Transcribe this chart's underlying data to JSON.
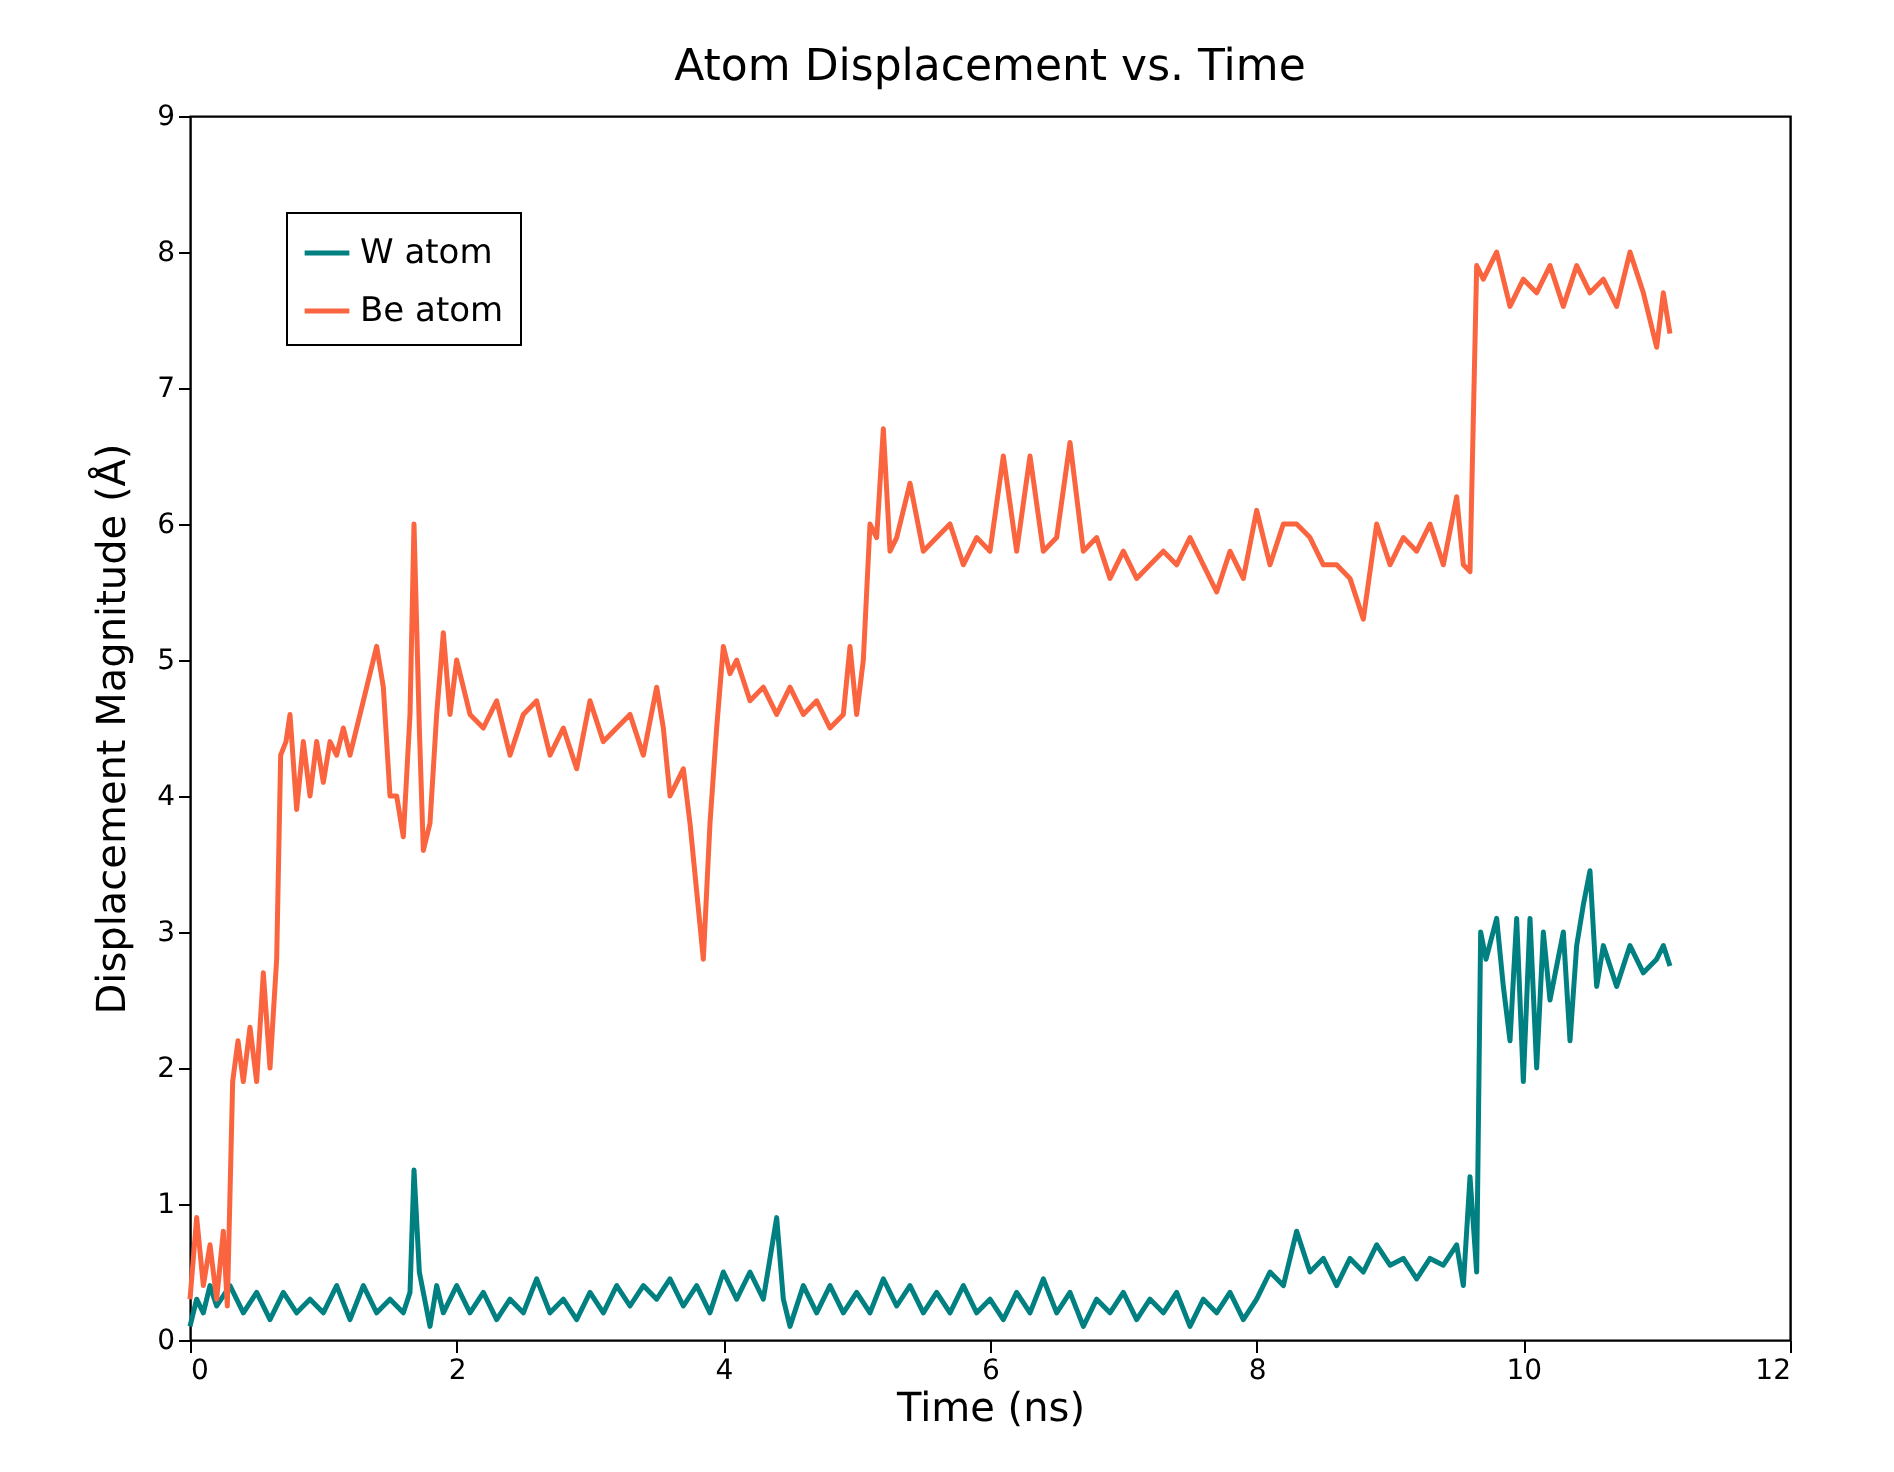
{
  "chart_data": {
    "type": "line",
    "title": "Atom Displacement vs. Time",
    "xlabel": "Time (ns)",
    "ylabel": "Displacement Magnitude (Å)",
    "xlim": [
      0,
      12
    ],
    "xticks": [
      0,
      2,
      4,
      6,
      8,
      10,
      12
    ],
    "ylim": [
      0,
      9
    ],
    "yticks": [
      0,
      1,
      2,
      3,
      4,
      5,
      6,
      7,
      8,
      9
    ],
    "grid": false,
    "legend": "top left",
    "series": [
      {
        "name": "W atom",
        "color": "#008080",
        "x": [
          0,
          0.05,
          0.1,
          0.15,
          0.2,
          0.3,
          0.4,
          0.5,
          0.6,
          0.7,
          0.8,
          0.9,
          1.0,
          1.1,
          1.2,
          1.3,
          1.4,
          1.5,
          1.6,
          1.65,
          1.68,
          1.72,
          1.8,
          1.85,
          1.9,
          2.0,
          2.1,
          2.2,
          2.3,
          2.4,
          2.5,
          2.6,
          2.7,
          2.8,
          2.9,
          3.0,
          3.1,
          3.2,
          3.3,
          3.4,
          3.5,
          3.6,
          3.7,
          3.8,
          3.9,
          4.0,
          4.1,
          4.2,
          4.3,
          4.4,
          4.45,
          4.5,
          4.6,
          4.7,
          4.8,
          4.9,
          5.0,
          5.1,
          5.2,
          5.3,
          5.4,
          5.5,
          5.6,
          5.7,
          5.8,
          5.9,
          6.0,
          6.1,
          6.2,
          6.3,
          6.4,
          6.5,
          6.6,
          6.7,
          6.8,
          6.9,
          7.0,
          7.1,
          7.2,
          7.3,
          7.4,
          7.5,
          7.6,
          7.7,
          7.8,
          7.9,
          8.0,
          8.1,
          8.2,
          8.3,
          8.4,
          8.5,
          8.6,
          8.7,
          8.8,
          8.9,
          9.0,
          9.1,
          9.2,
          9.3,
          9.4,
          9.5,
          9.55,
          9.6,
          9.65,
          9.68,
          9.72,
          9.8,
          9.85,
          9.9,
          9.95,
          10.0,
          10.05,
          10.1,
          10.15,
          10.2,
          10.3,
          10.35,
          10.4,
          10.45,
          10.5,
          10.55,
          10.6,
          10.7,
          10.8,
          10.9,
          11.0,
          11.05,
          11.1
        ],
        "values": [
          0.1,
          0.3,
          0.2,
          0.4,
          0.25,
          0.4,
          0.2,
          0.35,
          0.15,
          0.35,
          0.2,
          0.3,
          0.2,
          0.4,
          0.15,
          0.4,
          0.2,
          0.3,
          0.2,
          0.35,
          1.25,
          0.5,
          0.1,
          0.4,
          0.2,
          0.4,
          0.2,
          0.35,
          0.15,
          0.3,
          0.2,
          0.45,
          0.2,
          0.3,
          0.15,
          0.35,
          0.2,
          0.4,
          0.25,
          0.4,
          0.3,
          0.45,
          0.25,
          0.4,
          0.2,
          0.5,
          0.3,
          0.5,
          0.3,
          0.9,
          0.3,
          0.1,
          0.4,
          0.2,
          0.4,
          0.2,
          0.35,
          0.2,
          0.45,
          0.25,
          0.4,
          0.2,
          0.35,
          0.2,
          0.4,
          0.2,
          0.3,
          0.15,
          0.35,
          0.2,
          0.45,
          0.2,
          0.35,
          0.1,
          0.3,
          0.2,
          0.35,
          0.15,
          0.3,
          0.2,
          0.35,
          0.1,
          0.3,
          0.2,
          0.35,
          0.15,
          0.3,
          0.5,
          0.4,
          0.8,
          0.5,
          0.6,
          0.4,
          0.6,
          0.5,
          0.7,
          0.55,
          0.6,
          0.45,
          0.6,
          0.55,
          0.7,
          0.4,
          1.2,
          0.5,
          3.0,
          2.8,
          3.1,
          2.6,
          2.2,
          3.1,
          1.9,
          3.1,
          2.0,
          3.0,
          2.5,
          3.0,
          2.2,
          2.9,
          3.2,
          3.45,
          2.6,
          2.9,
          2.6,
          2.9,
          2.7,
          2.8,
          2.9,
          2.75
        ]
      },
      {
        "name": "Be atom",
        "color": "#fa6540",
        "x": [
          0,
          0.05,
          0.1,
          0.15,
          0.2,
          0.25,
          0.28,
          0.32,
          0.36,
          0.4,
          0.45,
          0.5,
          0.55,
          0.6,
          0.65,
          0.68,
          0.72,
          0.75,
          0.8,
          0.85,
          0.9,
          0.95,
          1.0,
          1.05,
          1.1,
          1.15,
          1.2,
          1.3,
          1.35,
          1.4,
          1.45,
          1.5,
          1.55,
          1.6,
          1.65,
          1.68,
          1.72,
          1.75,
          1.8,
          1.85,
          1.9,
          1.95,
          2.0,
          2.1,
          2.2,
          2.3,
          2.4,
          2.5,
          2.6,
          2.7,
          2.8,
          2.9,
          3.0,
          3.1,
          3.2,
          3.3,
          3.4,
          3.5,
          3.55,
          3.6,
          3.7,
          3.75,
          3.8,
          3.85,
          3.9,
          3.95,
          4.0,
          4.05,
          4.1,
          4.2,
          4.3,
          4.4,
          4.5,
          4.6,
          4.7,
          4.8,
          4.9,
          4.95,
          5.0,
          5.05,
          5.1,
          5.15,
          5.2,
          5.25,
          5.3,
          5.4,
          5.5,
          5.6,
          5.7,
          5.8,
          5.9,
          6.0,
          6.1,
          6.2,
          6.3,
          6.4,
          6.5,
          6.6,
          6.7,
          6.8,
          6.9,
          7.0,
          7.1,
          7.2,
          7.3,
          7.4,
          7.5,
          7.6,
          7.7,
          7.8,
          7.9,
          8.0,
          8.1,
          8.2,
          8.3,
          8.4,
          8.5,
          8.6,
          8.7,
          8.8,
          8.9,
          9.0,
          9.1,
          9.2,
          9.3,
          9.4,
          9.5,
          9.55,
          9.6,
          9.65,
          9.7,
          9.8,
          9.9,
          10.0,
          10.1,
          10.2,
          10.3,
          10.4,
          10.5,
          10.6,
          10.7,
          10.8,
          10.9,
          10.95,
          11.0,
          11.05,
          11.1
        ],
        "values": [
          0.3,
          0.9,
          0.4,
          0.7,
          0.3,
          0.8,
          0.25,
          1.9,
          2.2,
          1.9,
          2.3,
          1.9,
          2.7,
          2.0,
          2.8,
          4.3,
          4.4,
          4.6,
          3.9,
          4.4,
          4.0,
          4.4,
          4.1,
          4.4,
          4.3,
          4.5,
          4.3,
          4.7,
          4.9,
          5.1,
          4.8,
          4.0,
          4.0,
          3.7,
          4.6,
          6.0,
          4.5,
          3.6,
          3.8,
          4.6,
          5.2,
          4.6,
          5.0,
          4.6,
          4.5,
          4.7,
          4.3,
          4.6,
          4.7,
          4.3,
          4.5,
          4.2,
          4.7,
          4.4,
          4.5,
          4.6,
          4.3,
          4.8,
          4.5,
          4.0,
          4.2,
          3.8,
          3.3,
          2.8,
          3.8,
          4.5,
          5.1,
          4.9,
          5.0,
          4.7,
          4.8,
          4.6,
          4.8,
          4.6,
          4.7,
          4.5,
          4.6,
          5.1,
          4.6,
          5.0,
          6.0,
          5.9,
          6.7,
          5.8,
          5.9,
          6.3,
          5.8,
          5.9,
          6.0,
          5.7,
          5.9,
          5.8,
          6.5,
          5.8,
          6.5,
          5.8,
          5.9,
          6.6,
          5.8,
          5.9,
          5.6,
          5.8,
          5.6,
          5.7,
          5.8,
          5.7,
          5.9,
          5.7,
          5.5,
          5.8,
          5.6,
          6.1,
          5.7,
          6.0,
          6.0,
          5.9,
          5.7,
          5.7,
          5.6,
          5.3,
          6.0,
          5.7,
          5.9,
          5.8,
          6.0,
          5.7,
          6.2,
          5.7,
          5.65,
          7.9,
          7.8,
          8.0,
          7.6,
          7.8,
          7.7,
          7.9,
          7.6,
          7.9,
          7.7,
          7.8,
          7.6,
          8.0,
          7.7,
          7.5,
          7.3,
          7.7,
          7.4
        ]
      }
    ]
  }
}
